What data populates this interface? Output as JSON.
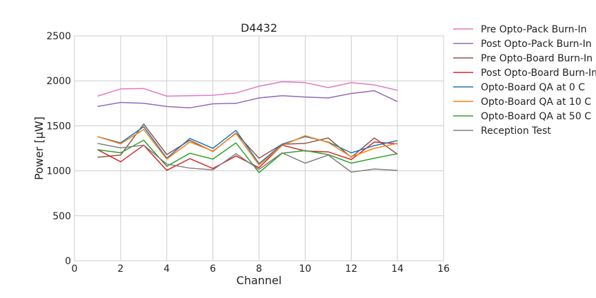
{
  "chart_data": {
    "type": "line",
    "title": "D4432",
    "xlabel": "Channel",
    "ylabel": "Power [μW]",
    "xlim": [
      0,
      16
    ],
    "ylim": [
      0,
      2500
    ],
    "xticks": [
      0,
      2,
      4,
      6,
      8,
      10,
      12,
      14,
      16
    ],
    "yticks": [
      0,
      500,
      1000,
      1500,
      2000,
      2500
    ],
    "grid": true,
    "legend_position": "outside-right-top",
    "x": [
      1,
      2,
      3,
      4,
      5,
      6,
      7,
      8,
      9,
      10,
      11,
      12,
      13,
      14
    ],
    "series": [
      {
        "name": "Pre Opto-Pack Burn-In",
        "color": "#e377c2",
        "values": [
          1830,
          1910,
          1915,
          1830,
          1835,
          1840,
          1865,
          1940,
          1990,
          1980,
          1925,
          1980,
          1955,
          1895
        ]
      },
      {
        "name": "Post Opto-Pack Burn-In",
        "color": "#9467bd",
        "values": [
          1715,
          1760,
          1750,
          1715,
          1700,
          1745,
          1750,
          1810,
          1835,
          1820,
          1810,
          1860,
          1890,
          1770
        ]
      },
      {
        "name": "Pre Opto-Board Burn-In",
        "color": "#8c564b",
        "values": [
          1150,
          1175,
          1520,
          1180,
          1340,
          1215,
          1420,
          1140,
          1295,
          1305,
          1365,
          1150,
          1365,
          1185
        ]
      },
      {
        "name": "Post Opto-Board Burn-In",
        "color": "#d62728",
        "values": [
          1235,
          1100,
          1285,
          1005,
          1135,
          1025,
          1165,
          1035,
          1285,
          1220,
          1210,
          1125,
          1320,
          1300
        ]
      },
      {
        "name": "Opto-Board QA at 0 C",
        "color": "#1f77b4",
        "values": [
          1380,
          1310,
          1490,
          1140,
          1360,
          1250,
          1450,
          1080,
          1295,
          1380,
          1320,
          1200,
          1280,
          1335
        ]
      },
      {
        "name": "Opto-Board QA at 10 C",
        "color": "#ff7f0e",
        "values": [
          1380,
          1300,
          1460,
          1130,
          1320,
          1220,
          1415,
          1065,
          1280,
          1390,
          1315,
          1155,
          1250,
          1305
        ]
      },
      {
        "name": "Opto-Board QA at 50 C",
        "color": "#2ca02c",
        "values": [
          1235,
          1200,
          1340,
          1050,
          1195,
          1130,
          1310,
          980,
          1195,
          1225,
          1180,
          1085,
          1140,
          1190
        ]
      },
      {
        "name": "Reception Test",
        "color": "#7f7f7f",
        "values": [
          1305,
          1255,
          1285,
          1075,
          1030,
          1010,
          1190,
          1015,
          1200,
          1085,
          1175,
          985,
          1020,
          1005
        ]
      }
    ]
  }
}
